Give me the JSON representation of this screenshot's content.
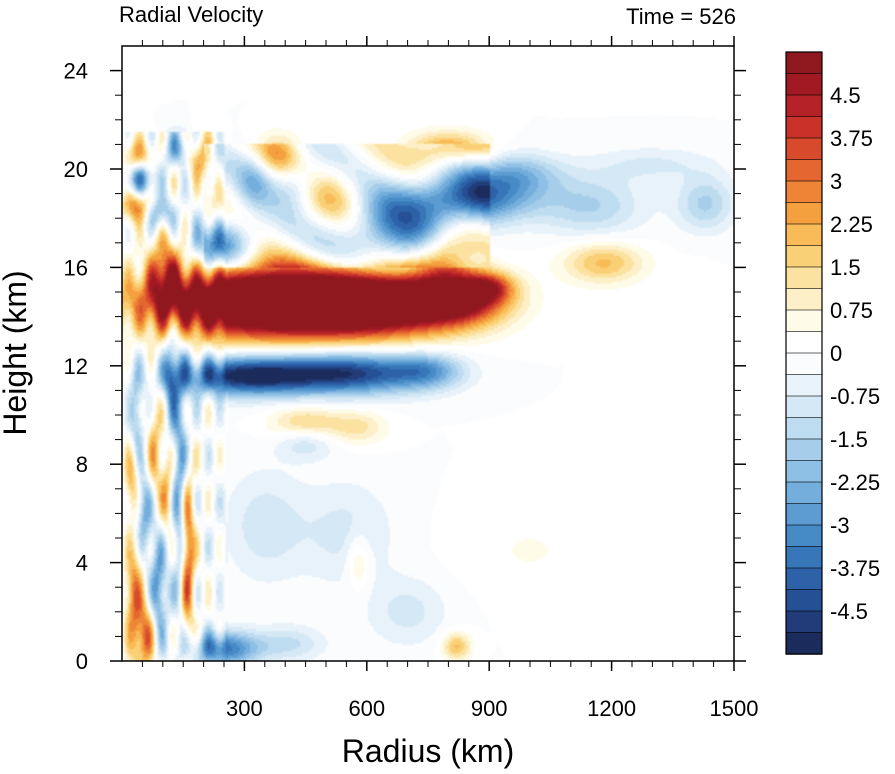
{
  "chart_data": {
    "type": "heatmap",
    "title": "Radial Velocity",
    "time_label": "Time = 526",
    "xlabel": "Radius (km)",
    "ylabel": "Height (km)",
    "xlim": [
      0,
      1500
    ],
    "ylim": [
      0,
      25
    ],
    "x_ticks": [
      300,
      600,
      900,
      1200,
      1500
    ],
    "x_tick_labels": [
      "300",
      "600",
      "900",
      "1200",
      "1500"
    ],
    "y_ticks": [
      0,
      4,
      8,
      12,
      16,
      20,
      24
    ],
    "y_tick_labels": [
      "0",
      "4",
      "8",
      "12",
      "16",
      "20",
      "24"
    ],
    "colorbar": {
      "min": -5.25,
      "max": 5.25,
      "step": 0.375,
      "tick_values": [
        4.5,
        3.75,
        3,
        2.25,
        1.5,
        0.75,
        0,
        -0.75,
        -1.5,
        -2.25,
        -3,
        -3.75,
        -4.5
      ],
      "tick_labels": [
        "4.5",
        "3.75",
        "3",
        "2.25",
        "1.5",
        "0.75",
        "0",
        "-0.75",
        "-1.5",
        "-2.25",
        "-3",
        "-3.75",
        "-4.5"
      ]
    },
    "features": [
      {
        "r": 330,
        "z": 14.6,
        "sr": 200,
        "sz": 1.0,
        "v": 7.5
      },
      {
        "r": 620,
        "z": 14.5,
        "sr": 160,
        "sz": 0.9,
        "v": 6.0
      },
      {
        "r": 820,
        "z": 14.8,
        "sr": 80,
        "sz": 0.7,
        "v": 4.5
      },
      {
        "r": 900,
        "z": 15.2,
        "sr": 40,
        "sz": 0.4,
        "v": 2.5
      },
      {
        "r": 300,
        "z": 11.6,
        "sr": 120,
        "sz": 0.55,
        "v": -5.0
      },
      {
        "r": 560,
        "z": 11.7,
        "sr": 130,
        "sz": 0.6,
        "v": -4.5
      },
      {
        "r": 750,
        "z": 11.8,
        "sr": 60,
        "sz": 0.5,
        "v": -2.0
      },
      {
        "r": 250,
        "z": 17.0,
        "sr": 60,
        "sz": 0.7,
        "v": -3.0
      },
      {
        "r": 660,
        "z": 17.4,
        "sr": 100,
        "sz": 1.0,
        "v": -3.0
      },
      {
        "r": 840,
        "z": 18.8,
        "sr": 110,
        "sz": 0.7,
        "v": -4.0
      },
      {
        "r": 960,
        "z": 19.8,
        "sr": 80,
        "sz": 0.6,
        "v": -2.0
      },
      {
        "r": 1150,
        "z": 18.5,
        "sr": 90,
        "sz": 0.9,
        "v": -1.5
      },
      {
        "r": 1430,
        "z": 18.6,
        "sr": 50,
        "sz": 0.8,
        "v": -1.6
      },
      {
        "r": 1300,
        "z": 20.2,
        "sr": 100,
        "sz": 0.5,
        "v": -0.8
      },
      {
        "r": 790,
        "z": 16.6,
        "sr": 50,
        "sz": 0.7,
        "v": 3.0
      },
      {
        "r": 1180,
        "z": 16.2,
        "sr": 70,
        "sz": 0.6,
        "v": 2.0
      },
      {
        "r": 800,
        "z": 20.8,
        "sr": 70,
        "sz": 0.5,
        "v": 2.5
      },
      {
        "r": 520,
        "z": 18.8,
        "sr": 60,
        "sz": 0.9,
        "v": 1.5
      },
      {
        "r": 40,
        "z": 20.5,
        "sr": 25,
        "sz": 0.5,
        "v": 2.5
      },
      {
        "r": 45,
        "z": 19.6,
        "sr": 25,
        "sz": 0.5,
        "v": -3.5
      },
      {
        "r": 35,
        "z": 18.5,
        "sr": 25,
        "sz": 0.5,
        "v": 3.0
      },
      {
        "r": 95,
        "z": 18.2,
        "sr": 25,
        "sz": 0.5,
        "v": -2.5
      },
      {
        "r": 110,
        "z": 15.8,
        "sr": 30,
        "sz": 1.2,
        "v": 3.0
      },
      {
        "r": 140,
        "z": 20.8,
        "sr": 25,
        "sz": 0.5,
        "v": -2.5
      },
      {
        "r": 190,
        "z": 20.5,
        "sr": 25,
        "sz": 0.6,
        "v": 2.5
      },
      {
        "r": 380,
        "z": 20.6,
        "sr": 40,
        "sz": 0.6,
        "v": 1.8
      },
      {
        "r": 325,
        "z": 19.6,
        "sr": 30,
        "sz": 0.8,
        "v": -1.5
      },
      {
        "r": 430,
        "z": 19.4,
        "sr": 40,
        "sz": 0.7,
        "v": -1.6
      },
      {
        "r": 145,
        "z": 7.0,
        "sr": 15,
        "sz": 3.5,
        "v": -3.0
      },
      {
        "r": 160,
        "z": 4.5,
        "sr": 12,
        "sz": 2.5,
        "v": 4.5
      },
      {
        "r": 120,
        "z": 11.5,
        "sr": 12,
        "sz": 1.5,
        "v": -2.5
      },
      {
        "r": 30,
        "z": 2.5,
        "sr": 15,
        "sz": 1.8,
        "v": 3.0
      },
      {
        "r": 60,
        "z": 1.0,
        "sr": 15,
        "sz": 1.0,
        "v": 3.0
      },
      {
        "r": 90,
        "z": 3.0,
        "sr": 15,
        "sz": 1.5,
        "v": -3.0
      },
      {
        "r": 55,
        "z": 6.0,
        "sr": 15,
        "sz": 1.2,
        "v": -2.5
      },
      {
        "r": 25,
        "z": 7.5,
        "sr": 12,
        "sz": 1.0,
        "v": 2.5
      },
      {
        "r": 80,
        "z": 8.5,
        "sr": 12,
        "sz": 1.5,
        "v": 2.0
      },
      {
        "r": 35,
        "z": 9.8,
        "sr": 12,
        "sz": 1.5,
        "v": -2.0
      },
      {
        "r": 110,
        "z": 7.0,
        "sr": 12,
        "sz": 1.5,
        "v": 2.0
      },
      {
        "r": 250,
        "z": 0.5,
        "sr": 60,
        "sz": 0.5,
        "v": -3.5
      },
      {
        "r": 410,
        "z": 0.7,
        "sr": 60,
        "sz": 0.5,
        "v": -1.2
      },
      {
        "r": 820,
        "z": 0.6,
        "sr": 25,
        "sz": 0.4,
        "v": 2.0
      },
      {
        "r": 450,
        "z": 9.6,
        "sr": 60,
        "sz": 0.5,
        "v": 2.0
      },
      {
        "r": 580,
        "z": 9.5,
        "sr": 50,
        "sz": 0.5,
        "v": 1.2
      },
      {
        "r": 450,
        "z": 9.0,
        "sr": 50,
        "sz": 0.5,
        "v": -1.5
      },
      {
        "r": 350,
        "z": 5.5,
        "sr": 70,
        "sz": 1.6,
        "v": -1.0
      },
      {
        "r": 550,
        "z": 5.2,
        "sr": 80,
        "sz": 1.5,
        "v": -0.9
      },
      {
        "r": 580,
        "z": 4.0,
        "sr": 20,
        "sz": 0.8,
        "v": 1.2
      },
      {
        "r": 700,
        "z": 2.0,
        "sr": 70,
        "sz": 1.0,
        "v": -0.9
      },
      {
        "r": 1000,
        "z": 4.5,
        "sr": 120,
        "sz": 1.2,
        "v": 0.4
      },
      {
        "r": 1420,
        "z": 12.0,
        "sr": 30,
        "sz": 2.2,
        "v": 0.35
      }
    ]
  }
}
